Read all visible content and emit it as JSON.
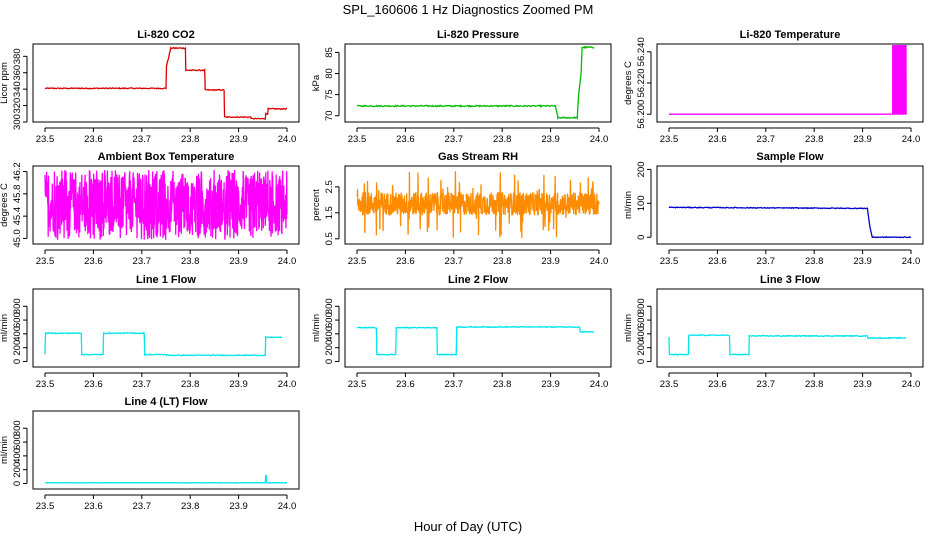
{
  "figure": {
    "title": "SPL_160606  1 Hz Diagnostics Zoomed PM",
    "xlabel": "Hour of Day (UTC)"
  },
  "chart_data": [
    {
      "id": "co2",
      "type": "line",
      "title": "Li-820 CO2",
      "ylabel": "Licor ppm",
      "color": "#dd0000",
      "xlim": [
        23.5,
        24.0
      ],
      "ylim": [
        300,
        395
      ],
      "xticks": [
        "23.5",
        "23.6",
        "23.7",
        "23.8",
        "23.9",
        "24.0"
      ],
      "yticks": [
        300,
        320,
        340,
        360,
        380
      ],
      "noise": 0.6,
      "series": [
        {
          "name": "Li-820 CO2",
          "x": [
            23.5,
            23.75,
            23.751,
            23.76,
            23.79,
            23.791,
            23.83,
            23.831,
            23.87,
            23.871,
            23.925,
            23.926,
            23.955,
            23.956,
            23.96,
            23.961,
            24.0
          ],
          "y": [
            341,
            341,
            368,
            390,
            390,
            363,
            363,
            339,
            339,
            306,
            306,
            304,
            304,
            310,
            310,
            316,
            316
          ]
        }
      ]
    },
    {
      "id": "pressure",
      "type": "line",
      "title": "Li-820 Pressure",
      "ylabel": "kPa",
      "color": "#00bb00",
      "xlim": [
        23.5,
        24.0
      ],
      "ylim": [
        68.5,
        87
      ],
      "xticks": [
        "23.5",
        "23.6",
        "23.7",
        "23.8",
        "23.9",
        "24.0"
      ],
      "yticks": [
        70,
        75,
        80,
        85
      ],
      "noise": 0.15,
      "series": [
        {
          "name": "Li-820 Pressure",
          "x": [
            23.5,
            23.91,
            23.915,
            23.955,
            23.958,
            23.963,
            23.965,
            23.99
          ],
          "y": [
            72.3,
            72.3,
            69.5,
            69.5,
            75,
            80,
            86.2,
            86.2
          ]
        }
      ]
    },
    {
      "id": "temp",
      "type": "line",
      "title": "Li-820 Temperature",
      "ylabel": "degrees C",
      "color": "#ff00ff",
      "xlim": [
        23.5,
        24.0
      ],
      "ylim": [
        56.195,
        56.245
      ],
      "xticks": [
        "23.5",
        "23.6",
        "23.7",
        "23.8",
        "23.9",
        "24.0"
      ],
      "yticks": [
        "56.200",
        "56.220",
        "56.240"
      ],
      "noise": 0,
      "series": [
        {
          "name": "Li-820 Temperature",
          "x": [
            23.5,
            23.96
          ],
          "y": [
            56.2,
            56.2
          ]
        }
      ],
      "band": {
        "x_from": 23.962,
        "x_to": 23.99,
        "y_from": 56.2,
        "y_to": 56.244
      }
    },
    {
      "id": "ambtemp",
      "type": "line",
      "title": "Ambient Box Temperature",
      "ylabel": "degrees C",
      "color": "#ff00ff",
      "xlim": [
        23.5,
        24.0
      ],
      "ylim": [
        44.9,
        46.3
      ],
      "xticks": [
        "23.5",
        "23.6",
        "23.7",
        "23.8",
        "23.9",
        "24.0"
      ],
      "yticks": [
        "45.0",
        "45.4",
        "45.8",
        "46.2"
      ],
      "oscillate": {
        "low": 45.1,
        "high": 46.1,
        "spikes": 0.15
      },
      "series": [
        {
          "name": "Ambient Box Temperature",
          "x": [
            23.5,
            24.0
          ],
          "y": [
            45.6,
            45.6
          ]
        }
      ]
    },
    {
      "id": "rh",
      "type": "line",
      "title": "Gas Stream RH",
      "ylabel": "percent",
      "color": "#ff8c00",
      "xlim": [
        23.5,
        24.0
      ],
      "ylim": [
        0.3,
        3.3
      ],
      "xticks": [
        "23.5",
        "23.6",
        "23.7",
        "23.8",
        "23.9",
        "24.0"
      ],
      "yticks": [
        "0.5",
        "1.5",
        "2.5"
      ],
      "oscillate": {
        "low": 1.4,
        "high": 2.3,
        "spikes": 0.06,
        "spike_low": 0.5,
        "spike_high": 3.1
      },
      "series": [
        {
          "name": "Gas Stream RH",
          "x": [
            23.5,
            24.0
          ],
          "y": [
            1.85,
            1.85
          ]
        }
      ]
    },
    {
      "id": "sampleflow",
      "type": "line",
      "title": "Sample Flow",
      "ylabel": "ml/min",
      "color": "#0000cc",
      "xlim": [
        23.5,
        24.0
      ],
      "ylim": [
        -20,
        210
      ],
      "xticks": [
        "23.5",
        "23.6",
        "23.7",
        "23.8",
        "23.9",
        "24.0"
      ],
      "yticks": [
        0,
        100,
        200
      ],
      "noise": 1.2,
      "series": [
        {
          "name": "Sample Flow",
          "x": [
            23.5,
            23.91,
            23.915,
            23.92,
            24.0
          ],
          "y": [
            88,
            85,
            30,
            0,
            0
          ]
        }
      ]
    },
    {
      "id": "line1",
      "type": "line",
      "title": "Line 1 Flow",
      "ylabel": "ml/min",
      "color": "#00e5ee",
      "xlim": [
        23.5,
        24.0
      ],
      "ylim": [
        -80,
        1050
      ],
      "xticks": [
        "23.5",
        "23.6",
        "23.7",
        "23.8",
        "23.9",
        "24.0"
      ],
      "yticks": [
        0,
        200,
        400,
        600,
        800
      ],
      "noise": 6,
      "series": [
        {
          "name": "Line 1 Flow",
          "x": [
            23.5,
            23.501,
            23.575,
            23.576,
            23.62,
            23.621,
            23.705,
            23.706,
            23.75,
            23.751,
            23.955,
            23.956,
            23.99
          ],
          "y": [
            100,
            410,
            410,
            100,
            100,
            410,
            410,
            100,
            100,
            90,
            90,
            350,
            350
          ]
        }
      ]
    },
    {
      "id": "line2",
      "type": "line",
      "title": "Line 2 Flow",
      "ylabel": "ml/min",
      "color": "#00e5ee",
      "xlim": [
        23.5,
        24.0
      ],
      "ylim": [
        -80,
        1050
      ],
      "xticks": [
        "23.5",
        "23.6",
        "23.7",
        "23.8",
        "23.9",
        "24.0"
      ],
      "yticks": [
        0,
        200,
        400,
        600,
        800
      ],
      "noise": 6,
      "series": [
        {
          "name": "Line 2 Flow",
          "x": [
            23.5,
            23.54,
            23.541,
            23.58,
            23.581,
            23.665,
            23.666,
            23.705,
            23.706,
            23.96,
            23.961,
            23.99
          ],
          "y": [
            490,
            490,
            100,
            100,
            490,
            490,
            100,
            100,
            500,
            500,
            430,
            430
          ]
        }
      ]
    },
    {
      "id": "line3",
      "type": "line",
      "title": "Line 3 Flow",
      "ylabel": "ml/min",
      "color": "#00e5ee",
      "xlim": [
        23.5,
        24.0
      ],
      "ylim": [
        -80,
        1050
      ],
      "xticks": [
        "23.5",
        "23.6",
        "23.7",
        "23.8",
        "23.9",
        "24.0"
      ],
      "yticks": [
        0,
        200,
        400,
        600,
        800
      ],
      "noise": 6,
      "series": [
        {
          "name": "Line 3 Flow",
          "x": [
            23.5,
            23.501,
            23.54,
            23.541,
            23.625,
            23.626,
            23.665,
            23.666,
            23.91,
            23.911,
            23.99
          ],
          "y": [
            350,
            100,
            100,
            380,
            380,
            100,
            100,
            370,
            370,
            340,
            340
          ]
        }
      ]
    },
    {
      "id": "line4",
      "type": "line",
      "title": "Line 4 (LT) Flow",
      "ylabel": "ml/min",
      "color": "#00e5ee",
      "xlim": [
        23.5,
        24.0
      ],
      "ylim": [
        -80,
        1050
      ],
      "xticks": [
        "23.5",
        "23.6",
        "23.7",
        "23.8",
        "23.9",
        "24.0"
      ],
      "yticks": [
        0,
        200,
        400,
        600,
        800
      ],
      "noise": 2,
      "series": [
        {
          "name": "Line 4 (LT) Flow",
          "x": [
            23.5,
            23.955,
            23.956,
            23.957,
            23.958,
            24.0
          ],
          "y": [
            10,
            10,
            110,
            110,
            10,
            10
          ]
        }
      ]
    }
  ]
}
